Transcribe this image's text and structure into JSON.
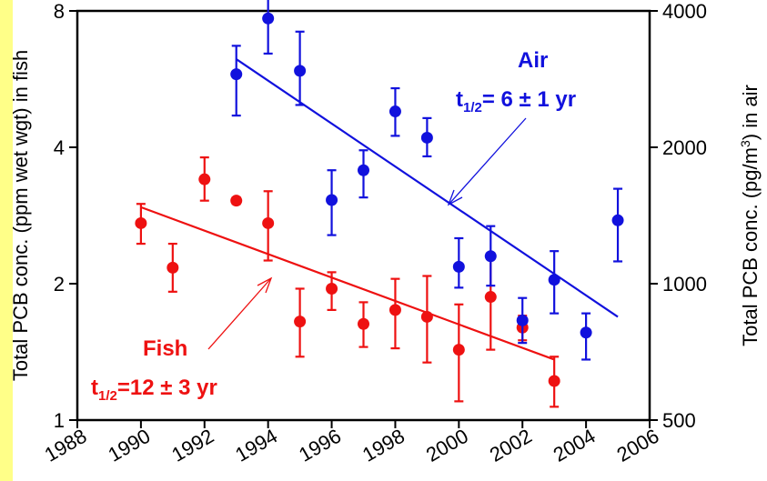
{
  "chart_data": {
    "type": "scatter",
    "x_ticks": [
      1988,
      1990,
      1992,
      1994,
      1996,
      1998,
      2000,
      2002,
      2004,
      2006
    ],
    "xlim": [
      1988,
      2006
    ],
    "y_left": {
      "label": "Total PCB conc. (ppm wet wgt) in fish",
      "scale": "log",
      "lim": [
        1,
        8
      ],
      "ticks": [
        1,
        2,
        4,
        8
      ]
    },
    "y_right": {
      "label_main": "Total PCB conc. (pg/m",
      "label_sup": "3",
      "label_tail": ") in air",
      "scale": "log",
      "lim": [
        500,
        4000
      ],
      "ticks": [
        500,
        1000,
        2000,
        4000
      ]
    },
    "series": [
      {
        "name": "Fish",
        "color": "#ee1111",
        "axis": "left",
        "points": [
          {
            "x": 1990,
            "y": 2.72,
            "lo": 2.45,
            "hi": 3.0
          },
          {
            "x": 1991,
            "y": 2.17,
            "lo": 1.92,
            "hi": 2.45
          },
          {
            "x": 1992,
            "y": 3.4,
            "lo": 3.05,
            "hi": 3.8
          },
          {
            "x": 1993,
            "y": 3.05,
            "lo": 3.0,
            "hi": 3.1
          },
          {
            "x": 1994,
            "y": 2.72,
            "lo": 2.25,
            "hi": 3.2
          },
          {
            "x": 1995,
            "y": 1.65,
            "lo": 1.38,
            "hi": 1.95
          },
          {
            "x": 1996,
            "y": 1.95,
            "lo": 1.75,
            "hi": 2.12
          },
          {
            "x": 1997,
            "y": 1.63,
            "lo": 1.45,
            "hi": 1.82
          },
          {
            "x": 1998,
            "y": 1.75,
            "lo": 1.44,
            "hi": 2.05
          },
          {
            "x": 1999,
            "y": 1.69,
            "lo": 1.34,
            "hi": 2.08
          },
          {
            "x": 2000,
            "y": 1.43,
            "lo": 1.1,
            "hi": 1.8
          },
          {
            "x": 2001,
            "y": 1.87,
            "lo": 1.43,
            "hi": 2.32
          },
          {
            "x": 2002,
            "y": 1.6,
            "lo": 1.5,
            "hi": 1.7
          },
          {
            "x": 2003,
            "y": 1.22,
            "lo": 1.07,
            "hi": 1.38
          }
        ],
        "fit": {
          "x": [
            1990,
            2003
          ],
          "y": [
            2.95,
            1.36
          ]
        },
        "label": "Fish",
        "half_life_prefix": "t",
        "half_life_sub": "1/2",
        "half_life_text": "=12 ± 3 yr"
      },
      {
        "name": "Air",
        "color": "#1111dd",
        "axis": "right",
        "points": [
          {
            "x": 1993,
            "y": 2900,
            "lo": 2350,
            "hi": 3350
          },
          {
            "x": 1994,
            "y": 3850,
            "lo": 3220,
            "hi": 4550
          },
          {
            "x": 1995,
            "y": 2950,
            "lo": 2480,
            "hi": 3600
          },
          {
            "x": 1996,
            "y": 1530,
            "lo": 1280,
            "hi": 1780
          },
          {
            "x": 1997,
            "y": 1780,
            "lo": 1550,
            "hi": 1970
          },
          {
            "x": 1998,
            "y": 2400,
            "lo": 2120,
            "hi": 2700
          },
          {
            "x": 1999,
            "y": 2100,
            "lo": 1910,
            "hi": 2320
          },
          {
            "x": 2000,
            "y": 1090,
            "lo": 980,
            "hi": 1260
          },
          {
            "x": 2001,
            "y": 1150,
            "lo": 990,
            "hi": 1340
          },
          {
            "x": 2002,
            "y": 830,
            "lo": 740,
            "hi": 930
          },
          {
            "x": 2003,
            "y": 1020,
            "lo": 860,
            "hi": 1180
          },
          {
            "x": 2004,
            "y": 780,
            "lo": 680,
            "hi": 860
          },
          {
            "x": 2005,
            "y": 1380,
            "lo": 1120,
            "hi": 1620
          }
        ],
        "fit": {
          "x": [
            1993,
            2005
          ],
          "y": [
            3130,
            845
          ]
        },
        "label": "Air",
        "half_life_prefix": "t",
        "half_life_sub": "1/2",
        "half_life_text": "= 6 ± 1 yr"
      }
    ]
  }
}
